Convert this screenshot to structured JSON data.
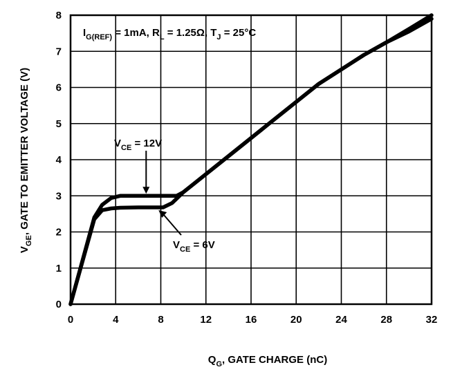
{
  "chart_data": {
    "type": "line",
    "xlabel": {
      "main": "Q",
      "sub": "G",
      "rest": ", GATE CHARGE (nC)"
    },
    "ylabel": {
      "main": "V",
      "sub": "GE",
      "rest": ", GATE TO EMITTER VOLTAGE (V)"
    },
    "xlim": [
      0,
      32
    ],
    "ylim": [
      0,
      8
    ],
    "xticks": [
      0,
      4,
      8,
      12,
      16,
      20,
      24,
      28,
      32
    ],
    "yticks": [
      0,
      1,
      2,
      3,
      4,
      5,
      6,
      7,
      8
    ],
    "grid": true,
    "conditions": {
      "ig_main": "I",
      "ig_sub": "G(REF)",
      "ig_rest": " = 1mA, ",
      "rl_main": "R",
      "rl_sub": "L",
      "rl_rest": " = 1.25Ω,  ",
      "tj_main": "T",
      "tj_sub": "J",
      "tj_rest": " = 25°C"
    },
    "series": [
      {
        "name": "VCE = 12V",
        "label": {
          "main": "V",
          "sub": "CE",
          "rest": " = 12V"
        },
        "x": [
          0,
          2.1,
          2.8,
          3.6,
          4.4,
          6,
          8,
          9.4,
          10,
          11,
          12,
          14,
          16,
          18,
          20,
          22,
          24,
          26,
          28,
          30,
          32
        ],
        "y": [
          0,
          2.4,
          2.75,
          2.94,
          3.0,
          3.0,
          3.0,
          3.0,
          3.1,
          3.35,
          3.6,
          4.1,
          4.6,
          5.1,
          5.6,
          6.1,
          6.5,
          6.9,
          7.25,
          7.62,
          8.0
        ]
      },
      {
        "name": "VCE = 6V",
        "label": {
          "main": "V",
          "sub": "CE",
          "rest": " = 6V"
        },
        "x": [
          0,
          2.1,
          2.8,
          3.6,
          4.4,
          6,
          8.2,
          9,
          10,
          11,
          12,
          14,
          16,
          18,
          20,
          22,
          24,
          26,
          28,
          30,
          32
        ],
        "y": [
          0,
          2.35,
          2.6,
          2.65,
          2.67,
          2.68,
          2.68,
          2.8,
          3.1,
          3.35,
          3.6,
          4.1,
          4.6,
          5.1,
          5.6,
          6.1,
          6.5,
          6.9,
          7.25,
          7.55,
          7.9
        ]
      }
    ]
  }
}
